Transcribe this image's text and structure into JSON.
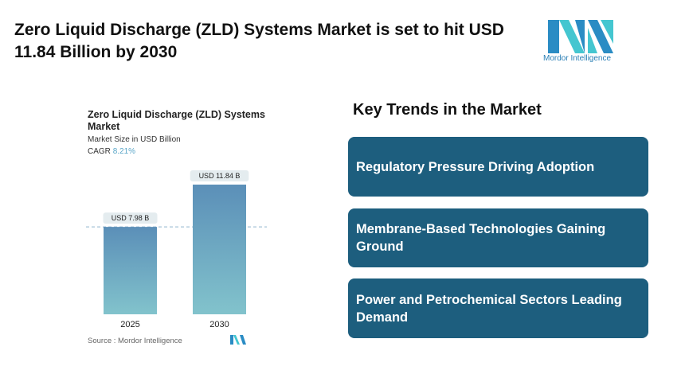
{
  "header": {
    "title": "Zero Liquid Discharge (ZLD) Systems Market is set to hit USD 11.84 Billion by 2030",
    "logo_text": "Mordor Intelligence"
  },
  "chart_data": {
    "type": "bar",
    "title": "Zero Liquid Discharge (ZLD) Systems Market",
    "subtitle": "Market Size in USD Billion",
    "cagr_label": "CAGR",
    "cagr_value": "8.21%",
    "categories": [
      "2025",
      "2030"
    ],
    "values": [
      7.98,
      11.84
    ],
    "data_labels": [
      "USD 7.98 B",
      "USD 11.84 B"
    ],
    "ylim": [
      0,
      11.84
    ],
    "grid": false,
    "colors": {
      "bar_top": "#5b8fb8",
      "bar_bottom": "#82c3cc",
      "label_bg": "#e4ecef",
      "ref_line": "#8fb4cc"
    },
    "source": "Source :  Mordor Intelligence"
  },
  "trends": {
    "title": "Key Trends in the Market",
    "items": [
      "Regulatory Pressure Driving Adoption",
      "Membrane-Based Technologies Gaining Ground",
      "Power and Petrochemical Sectors Leading Demand"
    ],
    "color": "#1d5e7e"
  }
}
